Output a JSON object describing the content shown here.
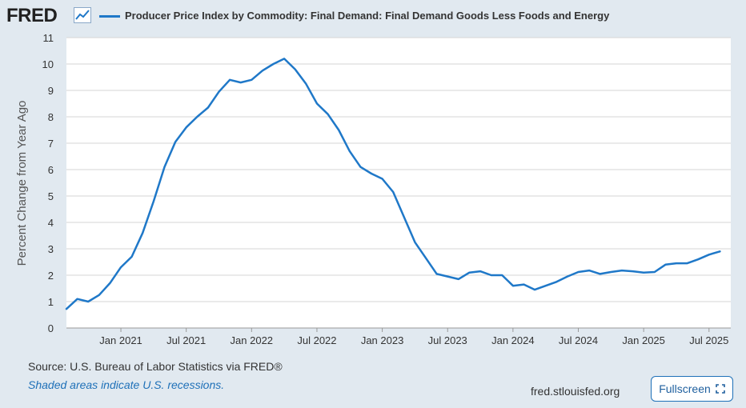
{
  "header": {
    "logo_text": "FRED",
    "logo_icon": "chart-line-icon",
    "legend_label": "Producer Price Index by Commodity: Final Demand: Final Demand Goods Less Foods and Energy",
    "series_color": "#1f78c8"
  },
  "chart_data": {
    "type": "line",
    "title": "",
    "xlabel": "",
    "ylabel": "Percent Change from Year Ago",
    "ylim": [
      0,
      11
    ],
    "xlim": [
      "2020-08",
      "2025-09"
    ],
    "yticks": [
      "0",
      "1",
      "2",
      "3",
      "4",
      "5",
      "6",
      "7",
      "8",
      "9",
      "10",
      "11"
    ],
    "xticks": [
      {
        "date": "2021-01",
        "label": "Jan 2021"
      },
      {
        "date": "2021-07",
        "label": "Jul 2021"
      },
      {
        "date": "2022-01",
        "label": "Jan 2022"
      },
      {
        "date": "2022-07",
        "label": "Jul 2022"
      },
      {
        "date": "2023-01",
        "label": "Jan 2023"
      },
      {
        "date": "2023-07",
        "label": "Jul 2023"
      },
      {
        "date": "2024-01",
        "label": "Jan 2024"
      },
      {
        "date": "2024-07",
        "label": "Jul 2024"
      },
      {
        "date": "2025-01",
        "label": "Jan 2025"
      },
      {
        "date": "2025-07",
        "label": "Jul 2025"
      }
    ],
    "grid": true,
    "series": [
      {
        "name": "Producer Price Index by Commodity: Final Demand: Final Demand Goods Less Foods and Energy",
        "color": "#1f78c8",
        "x": [
          "2020-08",
          "2020-09",
          "2020-10",
          "2020-11",
          "2020-12",
          "2021-01",
          "2021-02",
          "2021-03",
          "2021-04",
          "2021-05",
          "2021-06",
          "2021-07",
          "2021-08",
          "2021-09",
          "2021-10",
          "2021-11",
          "2021-12",
          "2022-01",
          "2022-02",
          "2022-03",
          "2022-04",
          "2022-05",
          "2022-06",
          "2022-07",
          "2022-08",
          "2022-09",
          "2022-10",
          "2022-11",
          "2022-12",
          "2023-01",
          "2023-02",
          "2023-03",
          "2023-04",
          "2023-05",
          "2023-06",
          "2023-07",
          "2023-08",
          "2023-09",
          "2023-10",
          "2023-11",
          "2023-12",
          "2024-01",
          "2024-02",
          "2024-03",
          "2024-04",
          "2024-05",
          "2024-06",
          "2024-07",
          "2024-08",
          "2024-09",
          "2024-10",
          "2024-11",
          "2024-12",
          "2025-01",
          "2025-02",
          "2025-03",
          "2025-04",
          "2025-05",
          "2025-06",
          "2025-07",
          "2025-08"
        ],
        "values": [
          0.72,
          1.1,
          1.0,
          1.25,
          1.7,
          2.3,
          2.7,
          3.6,
          4.8,
          6.1,
          7.05,
          7.6,
          8.0,
          8.35,
          8.95,
          9.4,
          9.3,
          9.4,
          9.75,
          10.0,
          10.2,
          9.8,
          9.25,
          8.5,
          8.1,
          7.5,
          6.7,
          6.1,
          5.85,
          5.65,
          5.15,
          4.2,
          3.25,
          2.65,
          2.05,
          1.95,
          1.85,
          2.1,
          2.15,
          2.0,
          2.0,
          1.6,
          1.65,
          1.45,
          1.6,
          1.75,
          1.95,
          2.12,
          2.18,
          2.05,
          2.12,
          2.18,
          2.15,
          2.1,
          2.12,
          2.4,
          2.45,
          2.45,
          2.6,
          2.78,
          2.9
        ]
      }
    ]
  },
  "footer": {
    "source": "Source: U.S. Bureau of Labor Statistics via FRED®",
    "note": "Shaded areas indicate U.S. recessions.",
    "url": "fred.stlouisfed.org",
    "fullscreen_label": "Fullscreen",
    "fullscreen_icon": "expand-icon"
  }
}
